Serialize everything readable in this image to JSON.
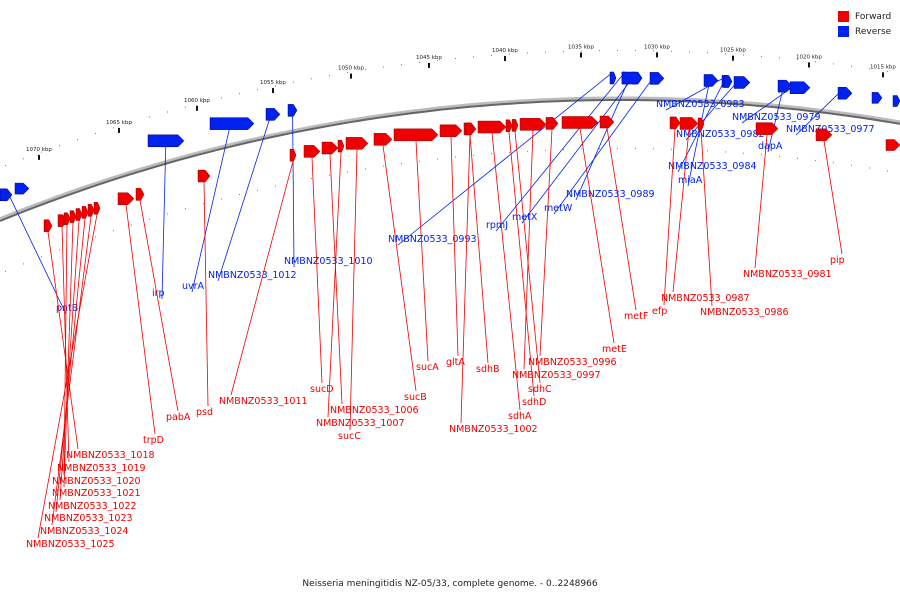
{
  "legend": {
    "forward": {
      "label": "Forward",
      "color": "#ee0000"
    },
    "reverse": {
      "label": "Reverse",
      "color": "#0022ee"
    }
  },
  "caption": "Neisseria meningitidis NZ-05/33, complete genome. - 0..2248966",
  "ticks": [
    "1070 kbp",
    "1065 kbp",
    "1060 kbp",
    "1055 kbp",
    "1050 kbp",
    "1045 kbp",
    "1040 kbp",
    "1035 kbp",
    "1030 kbp",
    "1025 kbp",
    "1020 kbp",
    "1015 kbp"
  ],
  "reverse_genes": [
    "pntB",
    "irp",
    "uvrA",
    "NMBNZ0533_1012",
    "NMBNZ0533_1010",
    "NMBNZ0533_0993",
    "rpmJ",
    "metX",
    "metW",
    "NMBNZ0533_0989",
    "miaA",
    "NMBNZ0533_0984",
    "NMBNZ0533_0982",
    "NMBNZ0533_0983",
    "NMBNZ0533_0979",
    "dapA",
    "NMBNZ0533_0977"
  ],
  "forward_genes": [
    "NMBNZ0533_1018",
    "NMBNZ0533_1019",
    "NMBNZ0533_1020",
    "NMBNZ0533_1021",
    "NMBNZ0533_1022",
    "NMBNZ0533_1023",
    "NMBNZ0533_1024",
    "NMBNZ0533_1025",
    "trpD",
    "pabA",
    "psd",
    "NMBNZ0533_1011",
    "sucD",
    "NMBNZ0533_1006",
    "NMBNZ0533_1007",
    "sucC",
    "sucB",
    "sucA",
    "gltA",
    "NMBNZ0533_1002",
    "sdhA",
    "sdhB",
    "sdhD",
    "sdhC",
    "NMBNZ0533_0997",
    "NMBNZ0533_0996",
    "metE",
    "metF",
    "efp",
    "NMBNZ0533_0987",
    "NMBNZ0533_0986",
    "NMBNZ0533_0981",
    "pip"
  ]
}
